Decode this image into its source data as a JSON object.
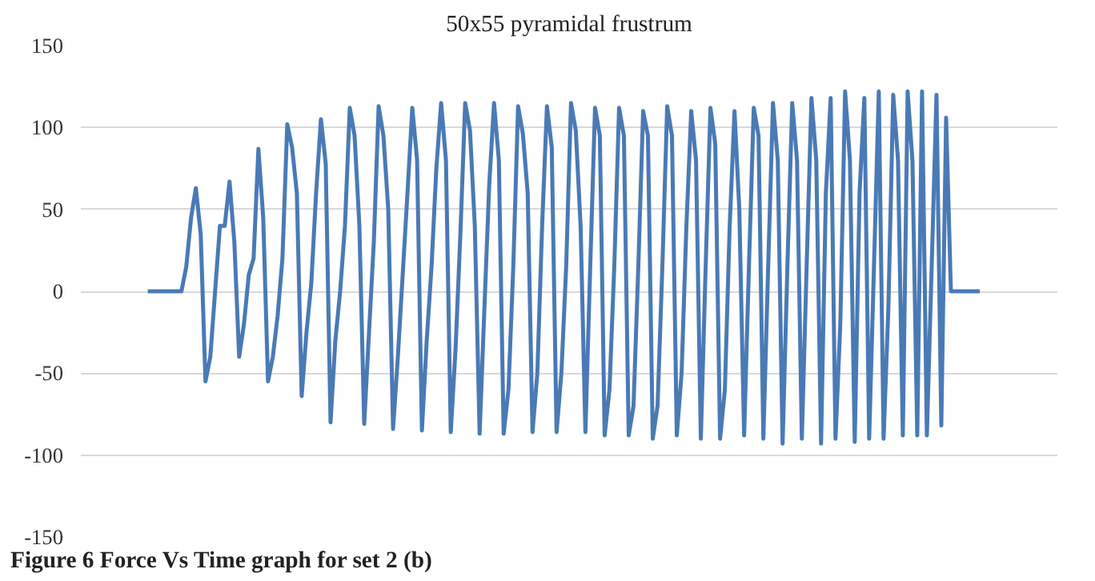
{
  "chart_data": {
    "type": "line",
    "title": "50x55 pyramidal frustrum",
    "annotations": [
      "Figure 6 Force Vs Time graph for set 2 (b)"
    ],
    "categories": [
      null,
      null,
      null,
      null,
      null,
      null,
      null,
      null,
      null,
      null,
      null,
      null,
      null,
      null,
      null,
      null,
      null,
      null,
      null,
      null,
      null,
      null,
      null,
      null,
      null,
      null,
      null,
      null,
      null,
      null,
      null,
      null,
      null,
      null,
      null,
      null,
      null,
      null,
      null,
      null,
      null,
      null,
      null,
      null,
      null,
      null,
      null,
      null,
      null,
      null,
      null,
      null,
      null,
      null,
      null,
      null,
      null,
      null,
      null,
      null,
      null,
      null,
      null,
      null,
      null,
      null,
      null,
      null,
      null,
      null,
      null,
      null,
      null,
      null,
      null,
      null,
      null,
      null,
      null,
      null,
      null,
      null,
      null,
      null,
      null,
      null,
      null,
      null,
      null,
      null,
      null,
      null,
      null,
      null,
      null,
      null,
      null,
      null,
      null,
      null,
      null,
      null,
      null,
      null,
      null,
      null,
      null,
      null,
      null,
      null,
      null,
      null,
      null,
      null,
      null,
      null,
      null,
      null,
      null,
      null,
      null,
      null,
      null,
      null,
      null,
      null,
      null,
      null,
      null,
      null,
      null,
      null,
      null,
      null,
      null,
      null,
      null,
      null,
      null,
      null,
      null,
      null,
      null,
      null,
      null,
      null,
      null,
      null,
      null,
      null,
      null,
      null,
      null,
      null,
      null,
      null,
      null,
      null,
      null,
      null,
      null,
      null,
      null,
      null,
      null,
      null,
      null,
      null,
      null,
      null,
      null,
      null,
      null,
      null
    ],
    "series": [
      {
        "color": "#4a7ab5",
        "values": [
          0,
          0,
          0,
          0,
          0,
          0,
          0,
          0,
          15,
          45,
          63,
          35,
          -55,
          -40,
          0,
          40,
          40,
          67,
          30,
          -40,
          -20,
          10,
          20,
          87,
          45,
          -55,
          -40,
          -15,
          20,
          102,
          88,
          60,
          -64,
          -25,
          5,
          60,
          105,
          78,
          -80,
          -30,
          0,
          40,
          112,
          95,
          40,
          -81,
          -25,
          30,
          113,
          95,
          50,
          -84,
          -40,
          10,
          60,
          112,
          80,
          -85,
          -30,
          15,
          75,
          115,
          80,
          -86,
          -35,
          35,
          115,
          98,
          40,
          -87,
          -10,
          65,
          115,
          80,
          -87,
          -60,
          15,
          113,
          96,
          60,
          -86,
          -50,
          40,
          113,
          88,
          -86,
          -50,
          15,
          115,
          98,
          40,
          -86,
          15,
          112,
          95,
          -88,
          -60,
          15,
          112,
          95,
          -88,
          -70,
          15,
          110,
          95,
          -90,
          -70,
          15,
          113,
          95,
          -88,
          -50,
          40,
          110,
          80,
          -90,
          15,
          112,
          90,
          -90,
          -60,
          40,
          110,
          50,
          -88,
          15,
          112,
          95,
          -90,
          15,
          115,
          80,
          -93,
          15,
          115,
          80,
          -90,
          15,
          118,
          80,
          -93,
          60,
          118,
          -90,
          -20,
          122,
          80,
          -92,
          60,
          118,
          -90,
          15,
          122,
          -90,
          -10,
          120,
          80,
          -88,
          122,
          80,
          -88,
          122,
          -88,
          15,
          120,
          -82,
          106,
          0,
          0,
          0,
          0,
          0,
          0,
          0
        ]
      }
    ],
    "ylim": [
      -150,
      150
    ],
    "yticks": [
      -150,
      -100,
      -50,
      0,
      50,
      100,
      150
    ],
    "grid": "y",
    "tick_labels": "y",
    "marker": "none",
    "line_style": "solid"
  }
}
